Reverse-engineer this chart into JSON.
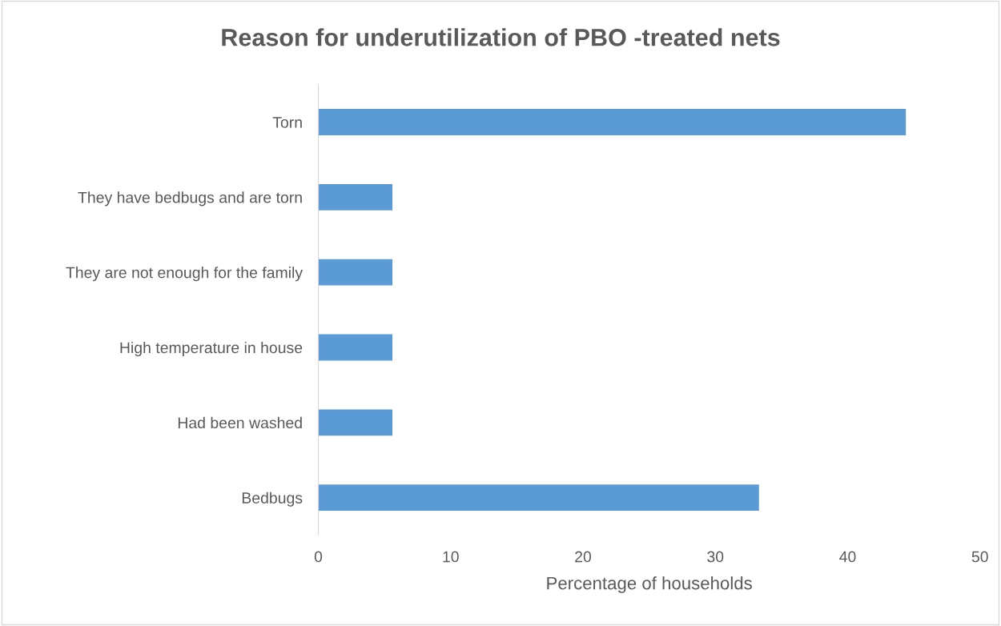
{
  "chart_data": {
    "type": "bar",
    "orientation": "horizontal",
    "title": "Reason for underutilization of PBO -treated nets",
    "xlabel": "Percentage of households",
    "categories": [
      "Torn",
      "They have bedbugs and are torn",
      "They are not enough for the family",
      "High temperature in house",
      "Had been washed",
      "Bedbugs"
    ],
    "values": [
      44.4,
      5.6,
      5.6,
      5.6,
      5.6,
      33.3
    ],
    "color": "#5b9bd5",
    "xlim": [
      0,
      50
    ],
    "xticks": [
      0,
      10,
      20,
      30,
      40,
      50
    ],
    "grid": false,
    "legend": false
  }
}
